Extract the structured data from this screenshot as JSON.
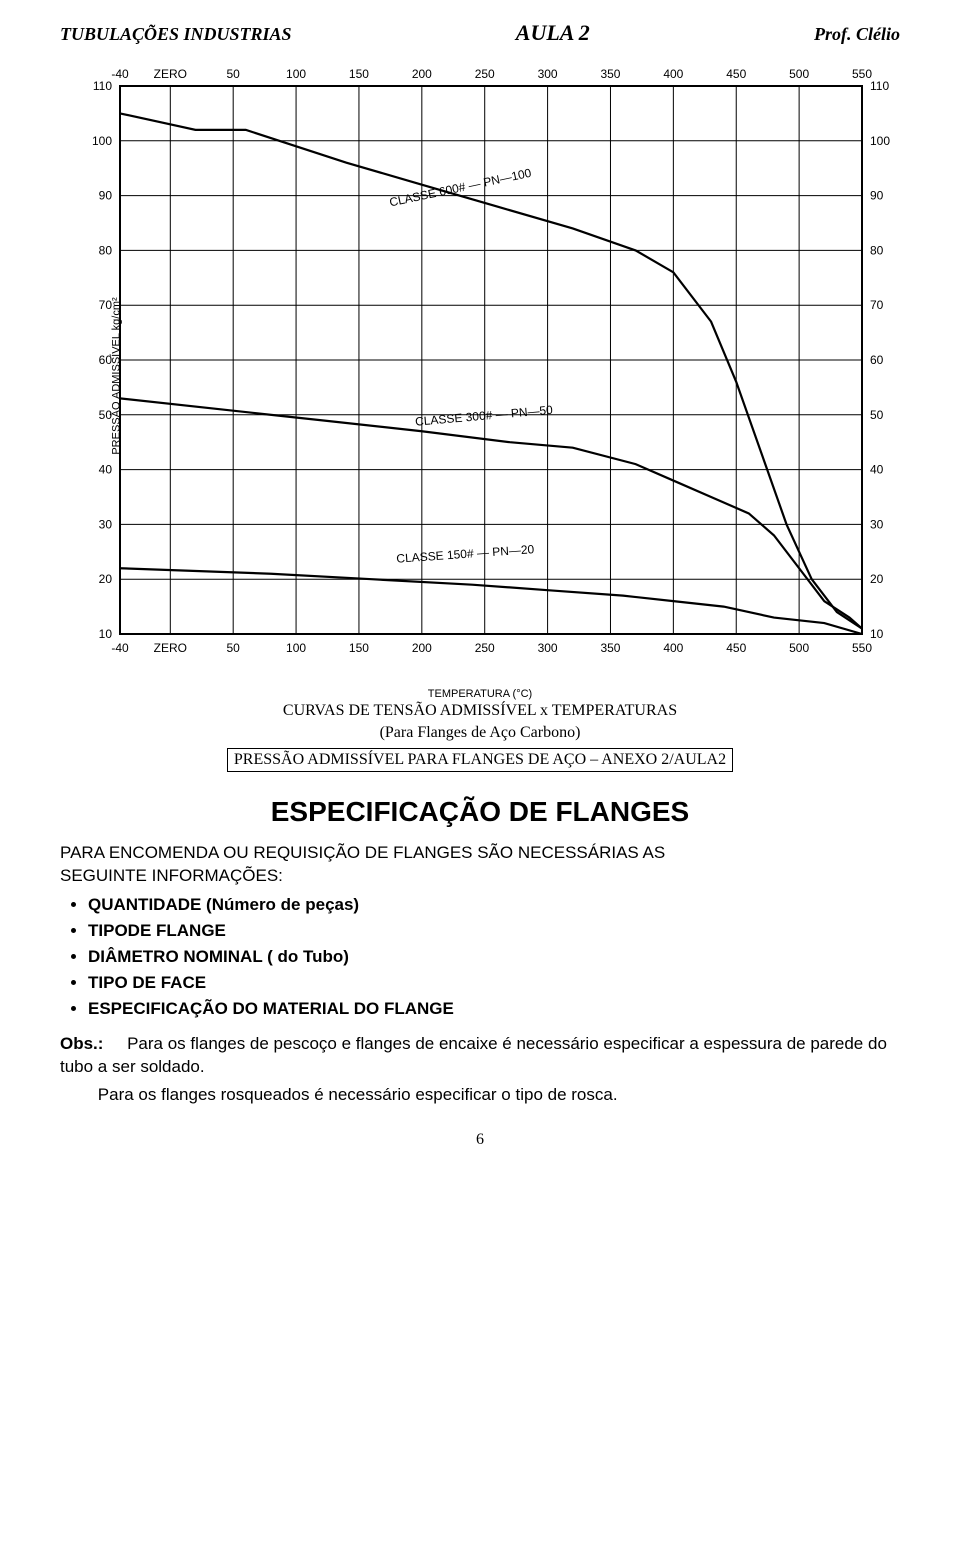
{
  "header": {
    "left": "TUBULAÇÕES INDUSTRIAS",
    "center": "AULA 2",
    "right": "Prof. Clélio"
  },
  "chart": {
    "type": "line",
    "y_label": "PRESSÃO ADMISSÍVEL kg/cm²",
    "x_label": "TEMPERATURA (°C)",
    "x_ticks": [
      "-40",
      "ZERO",
      "50",
      "100",
      "150",
      "200",
      "250",
      "300",
      "350",
      "400",
      "450",
      "500",
      "550"
    ],
    "y_ticks": [
      110,
      100,
      90,
      80,
      70,
      60,
      50,
      40,
      30,
      20,
      10
    ],
    "xlim": [
      -40,
      550
    ],
    "ylim": [
      10,
      110
    ],
    "grid_color": "#000000",
    "background_color": "#ffffff",
    "line_color": "#000000",
    "line_width": 2.2,
    "series": [
      {
        "label": "CLASSE 600# — PN—100",
        "label_xy": [
          175,
          88
        ],
        "label_angle": -12,
        "points": [
          [
            -40,
            105
          ],
          [
            20,
            102
          ],
          [
            60,
            102
          ],
          [
            140,
            96
          ],
          [
            200,
            92
          ],
          [
            260,
            88
          ],
          [
            320,
            84
          ],
          [
            370,
            80
          ],
          [
            400,
            76
          ],
          [
            430,
            67
          ],
          [
            450,
            56
          ],
          [
            470,
            43
          ],
          [
            490,
            30
          ],
          [
            510,
            20
          ],
          [
            530,
            14
          ],
          [
            550,
            11
          ]
        ]
      },
      {
        "label": "CLASSE 300# — PN—50",
        "label_xy": [
          195,
          48
        ],
        "label_angle": -5,
        "points": [
          [
            -40,
            53
          ],
          [
            40,
            51
          ],
          [
            120,
            49
          ],
          [
            200,
            47
          ],
          [
            270,
            45
          ],
          [
            320,
            44
          ],
          [
            370,
            41
          ],
          [
            400,
            38
          ],
          [
            430,
            35
          ],
          [
            460,
            32
          ],
          [
            480,
            28
          ],
          [
            500,
            22
          ],
          [
            520,
            16
          ],
          [
            540,
            13
          ],
          [
            550,
            11
          ]
        ]
      },
      {
        "label": "CLASSE 150# — PN—20",
        "label_xy": [
          180,
          23
        ],
        "label_angle": -4,
        "points": [
          [
            -40,
            22
          ],
          [
            80,
            21
          ],
          [
            160,
            20
          ],
          [
            240,
            19
          ],
          [
            300,
            18
          ],
          [
            360,
            17
          ],
          [
            400,
            16
          ],
          [
            440,
            15
          ],
          [
            480,
            13
          ],
          [
            520,
            12
          ],
          [
            550,
            10
          ]
        ]
      }
    ]
  },
  "caption1": "CURVAS DE TENSÃO ADMISSÍVEL x TEMPERATURAS",
  "caption2": "(Para Flanges de Aço Carbono)",
  "boxed": "PRESSÃO ADMISSÍVEL PARA FLANGES DE AÇO – ANEXO 2/AULA2",
  "spec_title": "ESPECIFICAÇÃO DE FLANGES",
  "para1a": "PARA ENCOMENDA OU REQUISIÇÃO DE FLANGES SÃO NECESSÁRIAS AS",
  "para1b": "SEGUINTE INFORMAÇÕES:",
  "bullets": {
    "b0": "QUANTIDADE (Número de peças)",
    "b1": "TIPODE FLANGE",
    "b2": "DIÂMETRO NOMINAL ( do Tubo)",
    "b3": "TIPO DE FACE",
    "b4": "ESPECIFICAÇÃO DO MATERIAL DO FLANGE"
  },
  "obs": {
    "label": "Obs.:",
    "line1": "Para os flanges de pescoço e flanges de encaixe é necessário especificar a espessura de parede do tubo a ser soldado.",
    "line2": "Para os flanges rosqueados é necessário especificar o tipo de rosca."
  },
  "pagenum": "6"
}
